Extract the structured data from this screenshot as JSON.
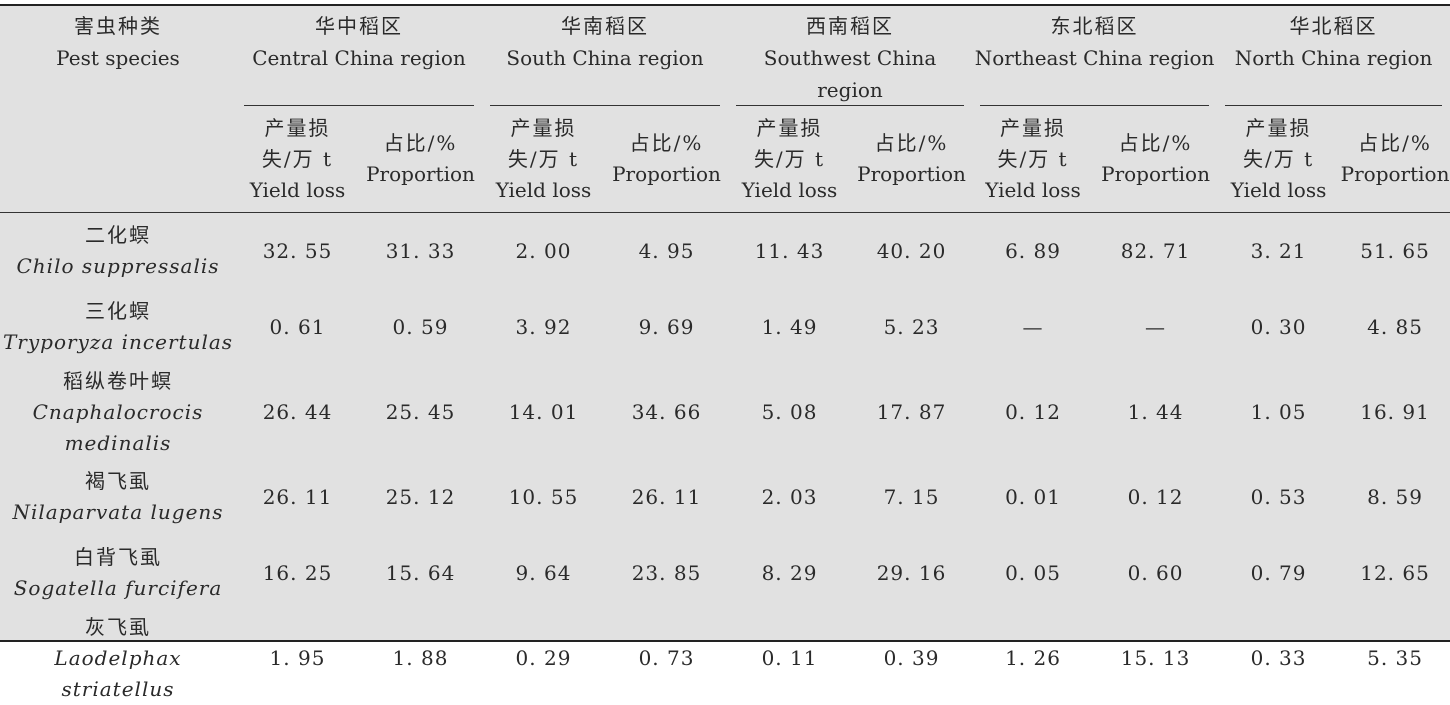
{
  "header": {
    "pest_cn": "害虫种类",
    "pest_en": "Pest species",
    "regions": [
      {
        "cn": "华中稻区",
        "en": "Central China region"
      },
      {
        "cn": "华南稻区",
        "en": "South China region"
      },
      {
        "cn": "西南稻区",
        "en": "Southwest China region"
      },
      {
        "cn": "东北稻区",
        "en": "Northeast China region"
      },
      {
        "cn": "华北稻区",
        "en": "North China region"
      }
    ],
    "yield_cn_1": "产量损",
    "yield_cn_2": "失/万 t",
    "yield_en": "Yield loss",
    "prop_cn": "占比/%",
    "prop_en": "Proportion"
  },
  "rows": [
    {
      "cn": "二化螟",
      "la": "Chilo suppressalis",
      "v": [
        "32. 55",
        "31. 33",
        "2. 00",
        "4. 95",
        "11. 43",
        "40. 20",
        "6. 89",
        "82. 71",
        "3. 21",
        "51. 65"
      ]
    },
    {
      "cn": "三化螟",
      "la": "Tryporyza incertulas",
      "v": [
        "0. 61",
        "0. 59",
        "3. 92",
        "9. 69",
        "1. 49",
        "5. 23",
        "—",
        "—",
        "0. 30",
        "4. 85"
      ]
    },
    {
      "cn": "稻纵卷叶螟",
      "la": "Cnaphalocrocis medinalis",
      "v": [
        "26. 44",
        "25. 45",
        "14. 01",
        "34. 66",
        "5. 08",
        "17. 87",
        "0. 12",
        "1. 44",
        "1. 05",
        "16. 91"
      ]
    },
    {
      "cn": "褐飞虱",
      "la": "Nilaparvata lugens",
      "v": [
        "26. 11",
        "25. 12",
        "10. 55",
        "26. 11",
        "2. 03",
        "7. 15",
        "0. 01",
        "0. 12",
        "0. 53",
        "8. 59"
      ]
    },
    {
      "cn": "白背飞虱",
      "la": "Sogatella furcifera",
      "v": [
        "16. 25",
        "15. 64",
        "9. 64",
        "23. 85",
        "8. 29",
        "29. 16",
        "0. 05",
        "0. 60",
        "0. 79",
        "12. 65"
      ]
    },
    {
      "cn": "灰飞虱",
      "la": "Laodelphax striatellus",
      "v": [
        "1. 95",
        "1. 88",
        "0. 29",
        "0. 73",
        "0. 11",
        "0. 39",
        "1. 26",
        "15. 13",
        "0. 33",
        "5. 35"
      ]
    }
  ]
}
